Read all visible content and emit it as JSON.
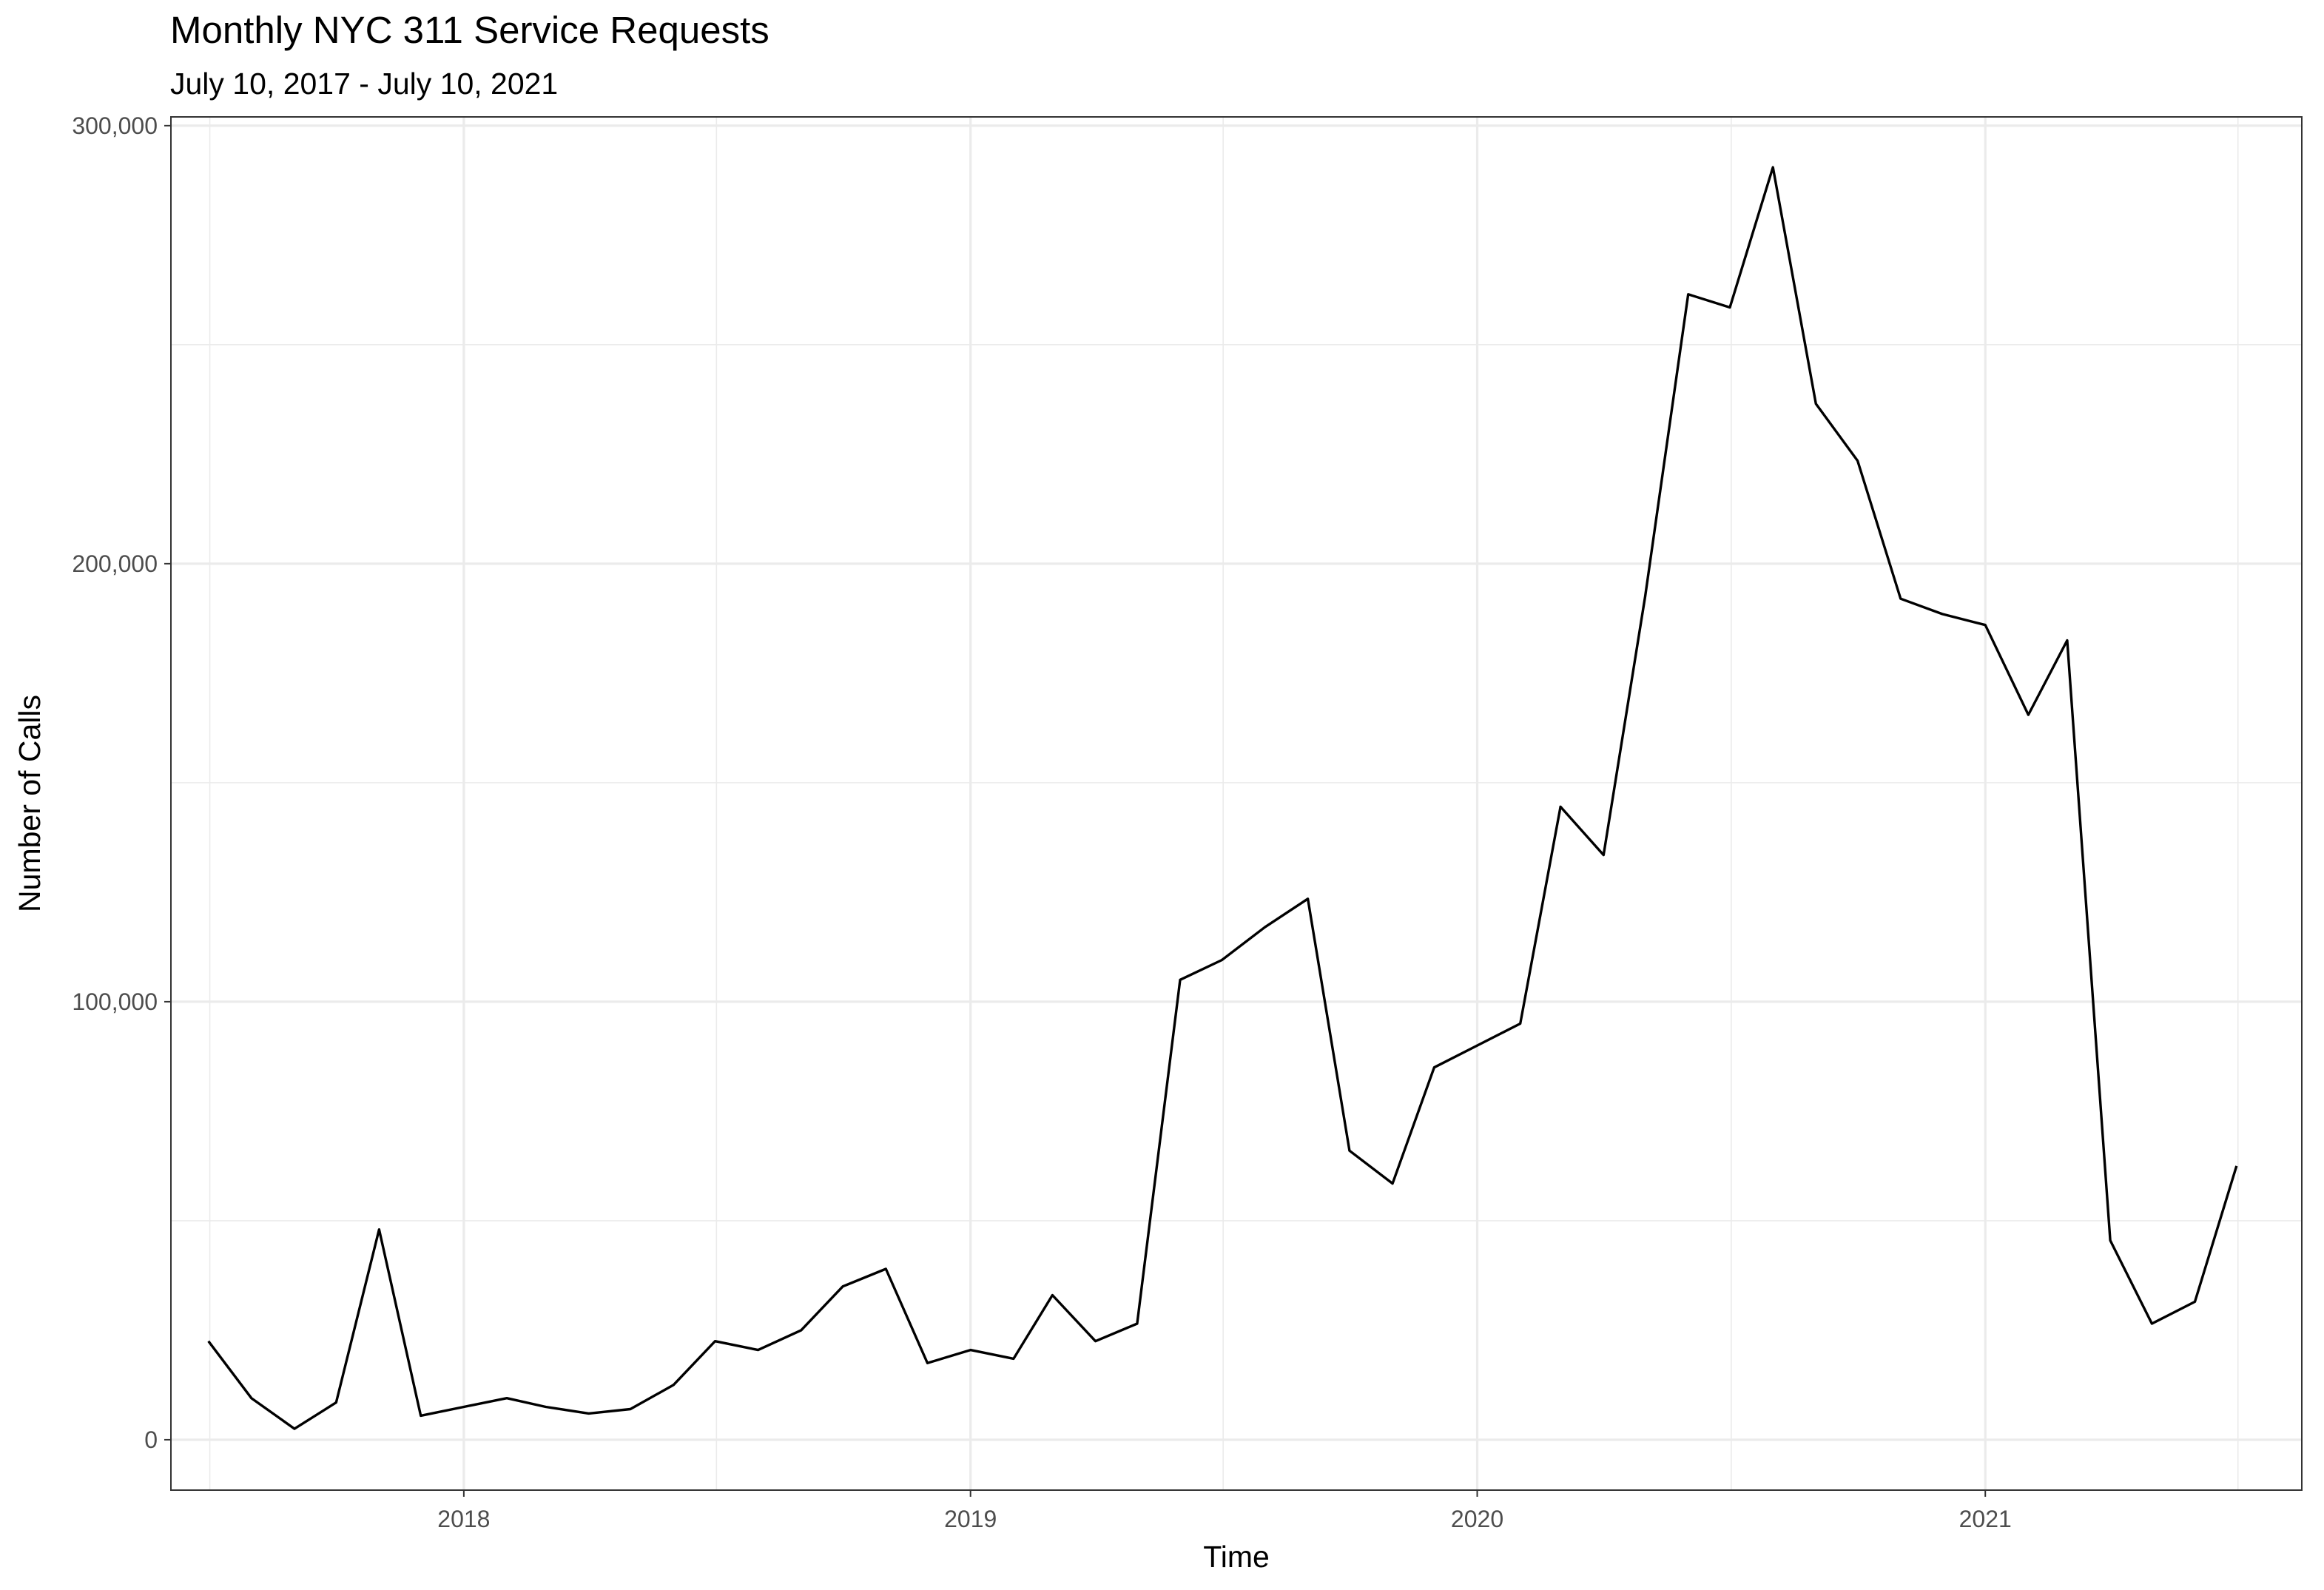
{
  "chart_data": {
    "type": "line",
    "title": "Monthly NYC 311 Service Requests",
    "subtitle": "July 10, 2017 - July 10, 2021",
    "xlabel": "Time",
    "ylabel": "Number of Calls",
    "x_range": [
      "2017-06-04",
      "2021-08-17"
    ],
    "ylim": [
      -11500,
      302000
    ],
    "x_ticks": [
      {
        "date": "2018-01-01",
        "label": "2018"
      },
      {
        "date": "2019-01-01",
        "label": "2019"
      },
      {
        "date": "2020-01-01",
        "label": "2020"
      },
      {
        "date": "2021-01-01",
        "label": "2021"
      }
    ],
    "y_ticks": [
      {
        "value": 0,
        "label": "0"
      },
      {
        "value": 100000,
        "label": "100,000"
      },
      {
        "value": 200000,
        "label": "200,000"
      },
      {
        "value": 300000,
        "label": "300,000"
      }
    ],
    "grid": true,
    "series": [
      {
        "x": [
          "2017-07-01",
          "2017-08-01",
          "2017-09-01",
          "2017-10-01",
          "2017-11-01",
          "2017-12-01",
          "2018-01-01",
          "2018-02-01",
          "2018-03-01",
          "2018-04-01",
          "2018-05-01",
          "2018-06-01",
          "2018-07-01",
          "2018-08-01",
          "2018-09-01",
          "2018-10-01",
          "2018-11-01",
          "2018-12-01",
          "2019-01-01",
          "2019-02-01",
          "2019-03-01",
          "2019-04-01",
          "2019-05-01",
          "2019-06-01",
          "2019-07-01",
          "2019-08-01",
          "2019-09-01",
          "2019-10-01",
          "2019-11-01",
          "2019-12-01",
          "2020-01-01",
          "2020-02-01",
          "2020-03-01",
          "2020-04-01",
          "2020-05-01",
          "2020-06-01",
          "2020-07-01",
          "2020-08-01",
          "2020-09-01",
          "2020-10-01",
          "2020-11-01",
          "2020-12-01",
          "2021-01-01",
          "2021-02-01",
          "2021-03-01",
          "2021-04-01",
          "2021-05-01",
          "2021-06-01",
          "2021-07-01"
        ],
        "values": [
          22500,
          9500,
          2500,
          8500,
          48000,
          5500,
          7500,
          9500,
          7500,
          6000,
          7000,
          12500,
          22500,
          20500,
          25000,
          35000,
          39000,
          17500,
          20500,
          18500,
          33000,
          22500,
          26500,
          105000,
          109500,
          117000,
          123500,
          66000,
          58500,
          85000,
          90000,
          95000,
          144500,
          133500,
          192500,
          261500,
          258500,
          290500,
          236500,
          223500,
          192000,
          188500,
          186000,
          165500,
          182500,
          45500,
          26500,
          31500,
          62500
        ]
      }
    ]
  }
}
